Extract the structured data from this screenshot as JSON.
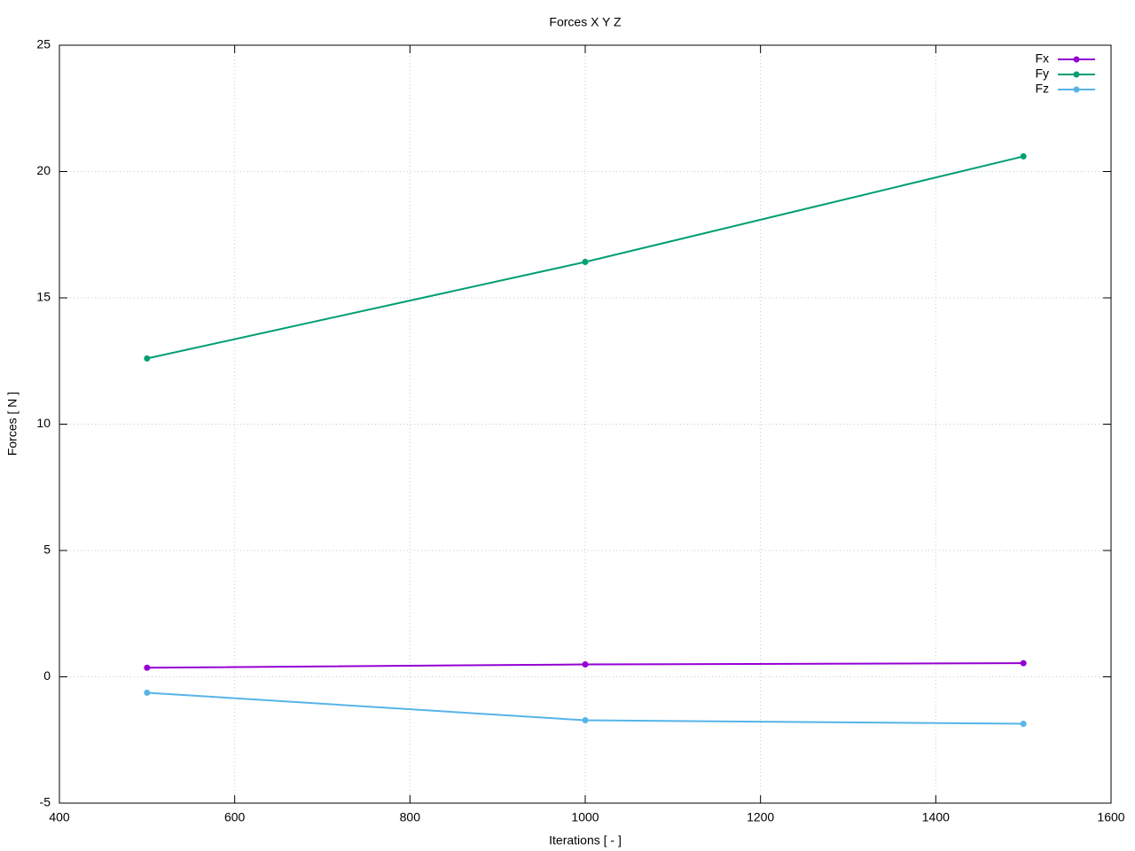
{
  "chart_data": {
    "type": "line",
    "title": "Forces X Y Z",
    "x_label": "Iterations [ - ]",
    "y_label": "Forces [ N ]",
    "x": [
      500,
      1000,
      1500
    ],
    "series": [
      {
        "name": "Fx",
        "color": "#9400d3",
        "values": [
          0.36,
          0.49,
          0.54
        ]
      },
      {
        "name": "Fy",
        "color": "#009e73",
        "values": [
          12.6,
          16.42,
          20.6
        ]
      },
      {
        "name": "Fz",
        "color": "#56b4e9",
        "values": [
          -0.63,
          -1.72,
          -1.86
        ]
      }
    ],
    "xlim": [
      400,
      1600
    ],
    "xticks": [
      400,
      600,
      800,
      1000,
      1200,
      1400,
      1600
    ],
    "ylim": [
      -5,
      25
    ],
    "yticks": [
      -5,
      0,
      5,
      10,
      15,
      20,
      25
    ],
    "grid": true,
    "legend": "top-right"
  }
}
